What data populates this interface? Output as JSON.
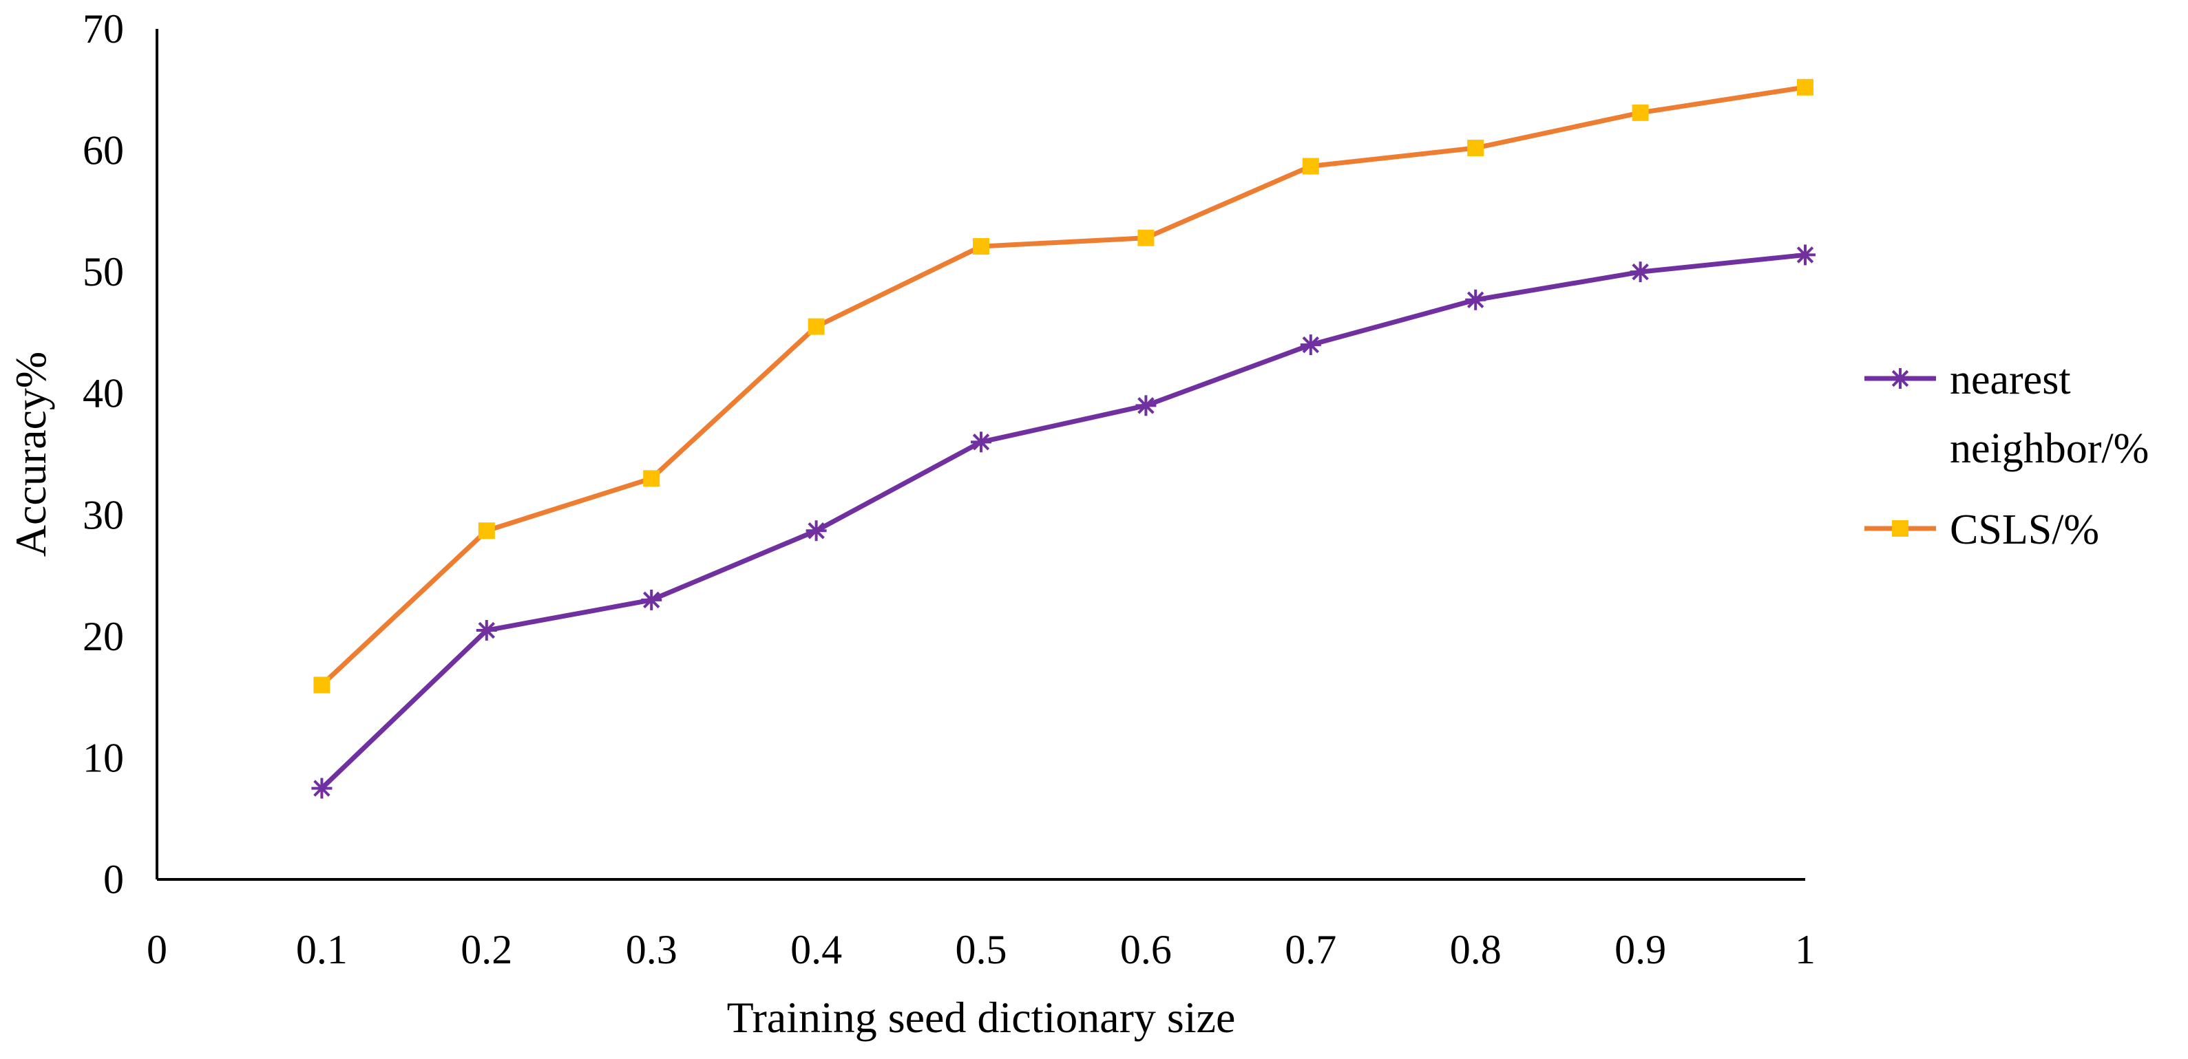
{
  "chart_data": {
    "type": "line",
    "title": "",
    "xlabel": "Training seed dictionary size",
    "ylabel": "Accuracy%",
    "xlim": [
      0,
      1
    ],
    "ylim": [
      0,
      70
    ],
    "grid": false,
    "legend_position": "right",
    "x": [
      0.1,
      0.2,
      0.3,
      0.4,
      0.5,
      0.6,
      0.7,
      0.8,
      0.9,
      1
    ],
    "x_tick_labels": [
      "0",
      "0.1",
      "0.2",
      "0.3",
      "0.4",
      "0.5",
      "0.6",
      "0.7",
      "0.8",
      "0.9",
      "1"
    ],
    "y_tick_labels": [
      "0",
      "10",
      "20",
      "30",
      "40",
      "50",
      "60",
      "70"
    ],
    "series": [
      {
        "name": "nearest neighbor/%",
        "legend_lines": [
          "nearest",
          "neighbor/%"
        ],
        "color": "#7030A0",
        "marker": "asterisk",
        "marker_color": "#7030A0",
        "values": [
          7.5,
          20.5,
          23,
          28.7,
          36,
          39,
          44,
          47.7,
          50,
          51.4
        ]
      },
      {
        "name": "CSLS/%",
        "legend_lines": [
          "CSLS/%"
        ],
        "color": "#ED7D31",
        "marker": "square",
        "marker_color": "#FFC000",
        "values": [
          16,
          28.7,
          33,
          45.5,
          52.1,
          52.8,
          58.7,
          60.2,
          63.1,
          65.2
        ]
      }
    ]
  }
}
